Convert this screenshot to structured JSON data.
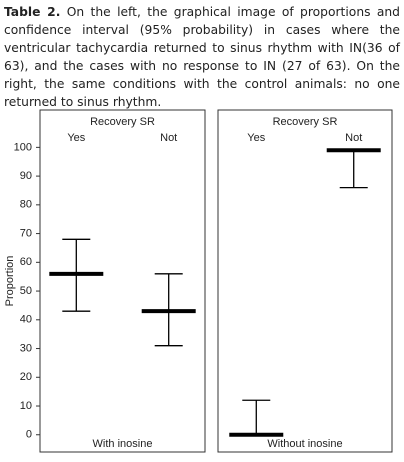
{
  "caption": {
    "label": "Table 2.",
    "text": "On the left, the graphical image of proportions and confidence interval (95% probability) in cases where the ventricular tachycardia returned to sinus rhythm with IN(36 of 63), and the cases with no response to IN (27 of 63). On the right, the same conditions with the control animals: no one returned to sinus rhythm."
  },
  "chart_data": [
    {
      "type": "errorbar",
      "title": "Recovery SR",
      "xlabel": "With inosine",
      "ylabel": "Proportion",
      "categories": [
        "Yes",
        "Not"
      ],
      "values": [
        56,
        43
      ],
      "lower": [
        43,
        31
      ],
      "upper": [
        68,
        56
      ],
      "ylim": [
        -6,
        113
      ],
      "yticks": [
        0,
        10,
        20,
        30,
        40,
        50,
        60,
        70,
        80,
        90,
        100
      ],
      "color": "#000000"
    },
    {
      "type": "errorbar",
      "title": "Recovery SR",
      "xlabel": "Without inosine",
      "categories": [
        "Yes",
        "Not"
      ],
      "values": [
        0,
        99
      ],
      "lower": [
        0,
        86
      ],
      "upper": [
        12,
        99
      ],
      "ylim": [
        -6,
        113
      ],
      "color": "#000000"
    }
  ]
}
